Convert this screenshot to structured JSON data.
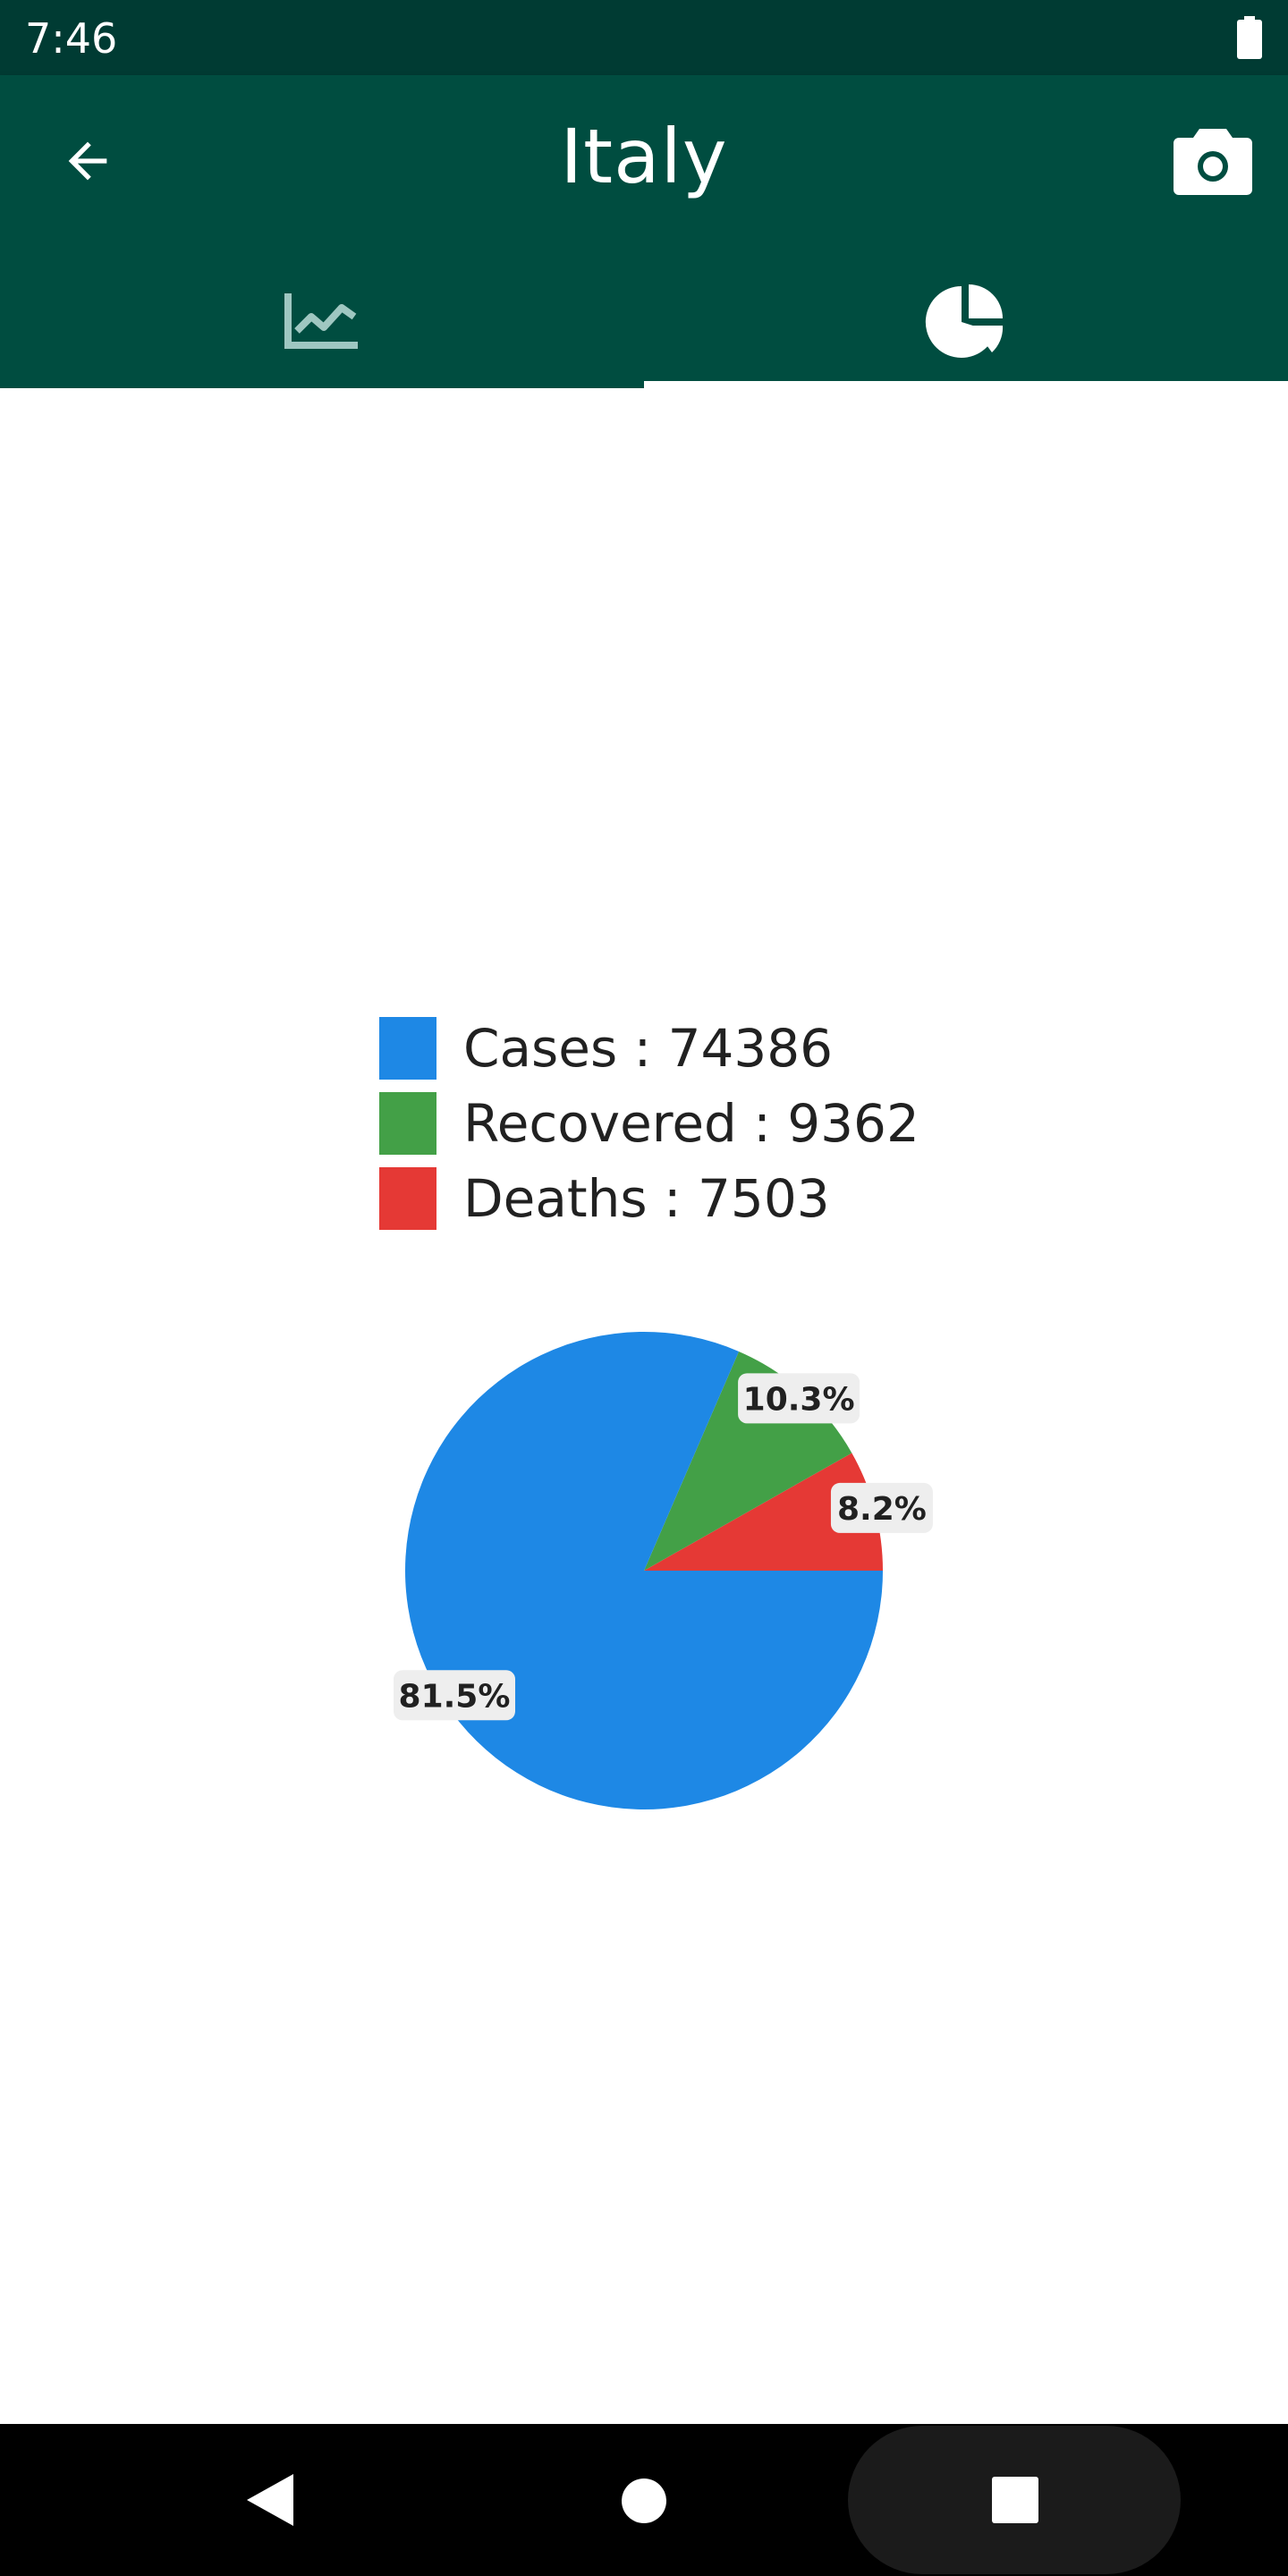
{
  "status_bar": {
    "time": "7:46"
  },
  "app_bar": {
    "title": "Italy"
  },
  "tabs": [
    {
      "name": "line-chart-tab",
      "icon": "line-chart-icon",
      "selected": false
    },
    {
      "name": "pie-chart-tab",
      "icon": "pie-chart-icon",
      "selected": true
    }
  ],
  "legend": [
    {
      "label": "Cases : 74386",
      "color": "#1e88e5"
    },
    {
      "label": "Recovered : 9362",
      "color": "#43a047"
    },
    {
      "label": "Deaths : 7503",
      "color": "#e53935"
    }
  ],
  "chart_data": {
    "type": "pie",
    "categories": [
      "Cases",
      "Recovered",
      "Deaths"
    ],
    "values": [
      81.5,
      10.3,
      8.2
    ],
    "value_labels": [
      "81.5%",
      "10.3%",
      "8.2%"
    ],
    "colors": [
      "#1e88e5",
      "#43a047",
      "#e53935"
    ],
    "title": "",
    "legend_position": "top"
  }
}
